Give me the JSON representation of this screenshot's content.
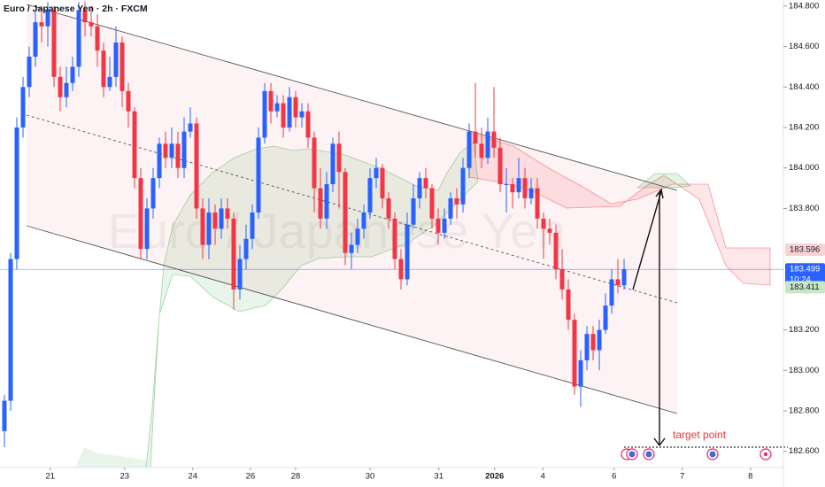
{
  "chart_data": {
    "type": "candlestick",
    "title": "Euro / Japanese Yen · 2h · FXCM",
    "watermark": "Euro / Japanese Yen",
    "annotation": "target point",
    "up_color": "#2962ff",
    "down_color": "#f23645",
    "open": [
      182.7,
      182.85,
      183.55,
      184.2,
      184.4,
      184.55,
      184.72,
      184.7,
      184.78,
      184.45,
      184.35,
      184.42,
      184.5,
      184.78,
      184.72,
      184.7,
      184.58,
      184.4,
      184.45,
      184.62,
      184.38,
      184.28,
      183.95,
      183.6,
      183.8,
      183.95,
      184.12,
      184.05,
      184.12,
      184.0,
      184.18,
      184.22,
      183.8,
      183.62,
      183.78,
      183.7,
      183.8,
      183.75,
      183.4,
      183.55,
      183.65,
      183.78,
      184.15,
      184.38,
      184.28,
      184.32,
      184.2,
      184.35,
      184.25,
      184.28,
      184.15,
      183.9,
      183.75,
      183.92,
      184.12,
      183.98,
      183.58,
      183.62,
      183.7,
      183.78,
      183.95,
      184.0,
      183.85,
      183.75,
      183.55,
      183.45,
      183.72,
      183.85,
      183.95,
      183.9,
      183.75,
      183.68,
      183.75,
      183.85,
      183.82,
      184.0,
      184.18,
      184.12,
      184.05,
      184.18,
      184.1,
      183.92,
      183.92,
      183.88,
      183.95,
      183.85,
      183.9,
      183.75,
      183.7,
      183.68,
      183.5,
      183.4,
      183.25,
      182.92,
      183.05,
      183.18,
      183.1,
      183.2,
      183.32,
      183.45,
      183.42
    ],
    "high": [
      182.88,
      183.58,
      184.25,
      184.45,
      184.6,
      184.78,
      184.8,
      184.82,
      184.8,
      184.5,
      184.5,
      184.55,
      184.82,
      184.82,
      184.8,
      184.76,
      184.62,
      184.55,
      184.7,
      184.65,
      184.42,
      184.3,
      184.0,
      183.85,
      184.0,
      184.15,
      184.18,
      184.2,
      184.18,
      184.25,
      184.3,
      184.25,
      183.85,
      183.85,
      183.82,
      183.85,
      183.85,
      183.78,
      183.62,
      183.72,
      183.82,
      184.2,
      184.42,
      184.42,
      184.36,
      184.36,
      184.4,
      184.38,
      184.32,
      184.32,
      184.18,
      184.0,
      183.98,
      184.15,
      184.18,
      184.0,
      183.68,
      183.75,
      183.82,
      184.0,
      184.05,
      184.02,
      183.88,
      183.78,
      183.6,
      183.78,
      183.92,
      183.98,
      184.0,
      183.92,
      183.8,
      183.8,
      183.88,
      183.9,
      184.05,
      184.22,
      184.42,
      184.2,
      184.25,
      184.4,
      184.15,
      184.0,
      183.95,
      184.05,
      184.0,
      183.95,
      183.95,
      183.78,
      183.75,
      183.72,
      183.6,
      183.45,
      183.28,
      183.1,
      183.22,
      183.22,
      183.25,
      183.38,
      183.5,
      183.55,
      183.55
    ],
    "low": [
      182.62,
      182.8,
      183.5,
      184.15,
      184.35,
      184.5,
      184.62,
      184.6,
      184.4,
      184.28,
      184.3,
      184.38,
      184.45,
      184.65,
      184.65,
      184.5,
      184.35,
      184.38,
      184.4,
      184.3,
      184.2,
      183.9,
      183.55,
      183.55,
      183.75,
      183.9,
      184.0,
      184.0,
      183.95,
      183.95,
      184.15,
      183.75,
      183.55,
      183.55,
      183.62,
      183.65,
      183.7,
      183.3,
      183.35,
      183.5,
      183.6,
      183.75,
      184.12,
      184.22,
      184.25,
      184.15,
      184.18,
      184.2,
      184.2,
      184.1,
      183.78,
      183.7,
      183.7,
      183.88,
      183.8,
      183.52,
      183.5,
      183.58,
      183.65,
      183.75,
      183.9,
      183.8,
      183.7,
      183.5,
      183.4,
      183.42,
      183.7,
      183.8,
      183.85,
      183.7,
      183.62,
      183.65,
      183.72,
      183.75,
      183.78,
      183.95,
      184.05,
      184.0,
      184.02,
      184.05,
      183.88,
      183.78,
      183.8,
      183.85,
      183.8,
      183.82,
      183.7,
      183.55,
      183.62,
      183.45,
      183.35,
      183.2,
      182.88,
      182.82,
      183.0,
      183.05,
      183.0,
      183.18,
      183.28,
      183.38,
      183.4
    ],
    "close": [
      182.85,
      183.55,
      184.2,
      184.4,
      184.55,
      184.72,
      184.7,
      184.78,
      184.45,
      184.35,
      184.42,
      184.5,
      184.78,
      184.72,
      184.7,
      184.58,
      184.4,
      184.45,
      184.62,
      184.38,
      184.28,
      183.95,
      183.6,
      183.8,
      183.95,
      184.12,
      184.05,
      184.12,
      184.0,
      184.18,
      184.22,
      183.8,
      183.62,
      183.78,
      183.7,
      183.8,
      183.75,
      183.4,
      183.55,
      183.65,
      183.78,
      184.15,
      184.38,
      184.28,
      184.32,
      184.2,
      184.35,
      184.25,
      184.28,
      184.15,
      183.9,
      183.75,
      183.92,
      184.12,
      183.98,
      183.58,
      183.62,
      183.7,
      183.78,
      183.95,
      184.0,
      183.85,
      183.75,
      183.55,
      183.45,
      183.72,
      183.85,
      183.95,
      183.9,
      183.75,
      183.68,
      183.75,
      183.85,
      183.82,
      184.0,
      184.18,
      184.12,
      184.05,
      184.18,
      184.1,
      183.92,
      183.92,
      183.88,
      183.95,
      183.85,
      183.9,
      183.75,
      183.7,
      183.68,
      183.5,
      183.4,
      183.25,
      182.92,
      183.05,
      183.18,
      183.1,
      183.2,
      183.32,
      183.45,
      183.42,
      183.5
    ],
    "xlim": [
      -0.714,
      125.71
    ],
    "ylim": [
      182.52,
      184.83
    ],
    "yticks": [
      {
        "value": 182.6,
        "label": "182.600"
      },
      {
        "value": 182.8,
        "label": "182.800"
      },
      {
        "value": 183.0,
        "label": "183.000"
      },
      {
        "value": 183.2,
        "label": "183.200"
      },
      {
        "value": 183.8,
        "label": "183.800"
      },
      {
        "value": 184.0,
        "label": "184.000"
      },
      {
        "value": 184.2,
        "label": "184.200"
      },
      {
        "value": 184.4,
        "label": "184.400"
      },
      {
        "value": 184.6,
        "label": "184.600"
      },
      {
        "value": 184.8,
        "label": "184.800"
      }
    ],
    "xticks": [
      {
        "value": 7.4,
        "label": "21"
      },
      {
        "value": 19.4,
        "label": "23"
      },
      {
        "value": 30.4,
        "label": "24"
      },
      {
        "value": 39.7,
        "label": "26"
      },
      {
        "value": 47.0,
        "label": "28"
      },
      {
        "value": 59.0,
        "label": "30"
      },
      {
        "value": 70.1,
        "label": "31"
      },
      {
        "value": 79.1,
        "label": "2026"
      },
      {
        "value": 86.9,
        "label": "4"
      },
      {
        "value": 98.4,
        "label": "6"
      },
      {
        "value": 109.4,
        "label": "7"
      },
      {
        "value": 120.4,
        "label": "8"
      }
    ],
    "current_price": 183.499,
    "countdown": "10:24",
    "price_labels": [
      {
        "value": 183.596,
        "color": "#f9d2d5"
      },
      {
        "value": 183.499,
        "color": "#2962ff"
      },
      {
        "value": 183.411,
        "color": "#c8e6c9"
      }
    ]
  }
}
